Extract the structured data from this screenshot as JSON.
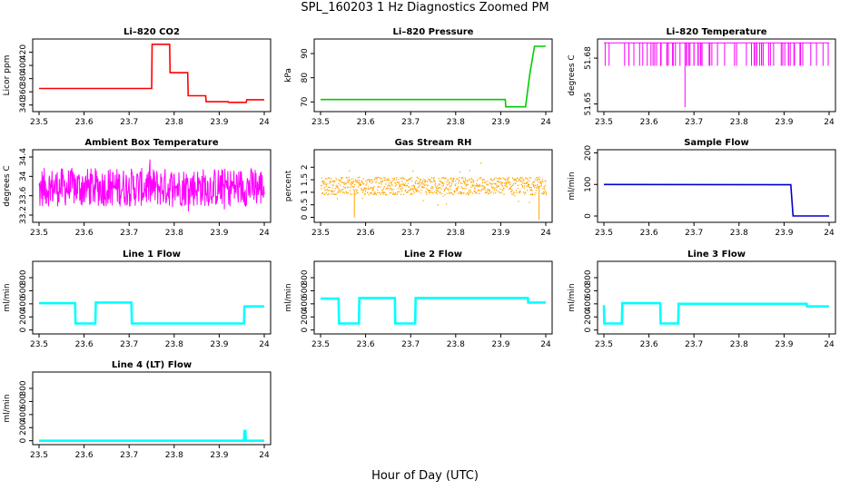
{
  "figure": {
    "title": "SPL_160203  1 Hz Diagnostics Zoomed PM",
    "xlabel": "Hour of Day (UTC)"
  },
  "chart_data": [
    {
      "type": "line",
      "title": "Li–820 CO2",
      "ylabel": "Licor ppm",
      "color": "#ff0000",
      "xlim": [
        23.5,
        24.0
      ],
      "xticks": [
        23.5,
        23.6,
        23.7,
        23.8,
        23.9,
        24.0
      ],
      "ylim": [
        330,
        440
      ],
      "yticks": [
        340,
        360,
        380,
        400,
        420
      ],
      "series": [
        {
          "x": [
            23.5,
            23.75,
            23.751,
            23.79,
            23.791,
            23.83,
            23.831,
            23.87,
            23.871,
            23.92,
            23.921,
            23.96,
            23.961,
            24.0
          ],
          "y": [
            365,
            365,
            432,
            432,
            389,
            389,
            354,
            354,
            345,
            345,
            344,
            344,
            348,
            348
          ]
        }
      ]
    },
    {
      "type": "line",
      "title": "Li–820 Pressure",
      "ylabel": "kPa",
      "color": "#00cc00",
      "xlim": [
        23.5,
        24.0
      ],
      "xticks": [
        23.5,
        23.6,
        23.7,
        23.8,
        23.9,
        24.0
      ],
      "ylim": [
        66,
        96
      ],
      "yticks": [
        70,
        80,
        90
      ],
      "series": [
        {
          "x": [
            23.5,
            23.91,
            23.911,
            23.955,
            23.965,
            23.975,
            24.0
          ],
          "y": [
            71,
            71,
            68,
            68,
            82,
            93,
            93
          ]
        }
      ]
    },
    {
      "type": "line",
      "title": "Li–820 Temperature",
      "ylabel": "degrees C",
      "color": "#ff00ff",
      "xlim": [
        23.5,
        24.0
      ],
      "xticks": [
        23.5,
        23.6,
        23.7,
        23.8,
        23.9,
        24.0
      ],
      "ylim": [
        51.645,
        51.6925
      ],
      "yticks": [
        51.65,
        51.68
      ],
      "series": [
        {
          "x": [
            23.5,
            24.0
          ],
          "y": [
            51.69,
            51.69
          ],
          "dips_to": 51.675,
          "spike_x": 23.68,
          "spike_to": 51.648
        }
      ]
    },
    {
      "type": "line",
      "title": "Ambient Box Temperature",
      "ylabel": "degrees C",
      "color": "#ff00ff",
      "xlim": [
        23.5,
        24.0
      ],
      "xticks": [
        23.5,
        23.6,
        23.7,
        23.8,
        23.9,
        24.0
      ],
      "ylim": [
        33.05,
        34.55
      ],
      "yticks": [
        33.2,
        33.6,
        34.0,
        34.4
      ],
      "series": [
        {
          "x": [
            23.5,
            24.0
          ],
          "y": [
            33.2,
            34.35
          ]
        }
      ]
    },
    {
      "type": "scatter",
      "title": "Gas Stream RH",
      "ylabel": "percent",
      "color": "#ffa500",
      "xlim": [
        23.5,
        24.0
      ],
      "xticks": [
        23.5,
        23.6,
        23.7,
        23.8,
        23.9,
        24.0
      ],
      "ylim": [
        -0.2,
        2.7
      ],
      "yticks": [
        0.0,
        0.5,
        1.0,
        1.5,
        2.0
      ],
      "series": [
        {
          "x": [
            23.5,
            24.0
          ],
          "y": [
            0.7,
            1.8
          ]
        }
      ]
    },
    {
      "type": "line",
      "title": "Sample Flow",
      "ylabel": "ml/min",
      "color": "#0000cc",
      "xlim": [
        23.5,
        24.0
      ],
      "xticks": [
        23.5,
        23.6,
        23.7,
        23.8,
        23.9,
        24.0
      ],
      "ylim": [
        -20,
        210
      ],
      "yticks": [
        0,
        100,
        200
      ],
      "series": [
        {
          "x": [
            23.5,
            23.915,
            23.92,
            24.0
          ],
          "y": [
            100,
            99,
            0,
            0
          ]
        }
      ]
    },
    {
      "type": "line",
      "title": "Line 1 Flow",
      "ylabel": "ml/min",
      "color": "#00ffff",
      "xlim": [
        23.5,
        24.0
      ],
      "xticks": [
        23.5,
        23.6,
        23.7,
        23.8,
        23.9,
        24.0
      ],
      "ylim": [
        -60,
        1050
      ],
      "yticks": [
        0,
        200,
        400,
        600,
        800
      ],
      "series": [
        {
          "x": [
            23.5,
            23.58,
            23.581,
            23.625,
            23.626,
            23.705,
            23.706,
            23.955,
            23.956,
            24.0
          ],
          "y": [
            410,
            410,
            100,
            100,
            420,
            420,
            100,
            100,
            360,
            360
          ]
        }
      ]
    },
    {
      "type": "line",
      "title": "Line 2 Flow",
      "ylabel": "ml/min",
      "color": "#00ffff",
      "xlim": [
        23.5,
        24.0
      ],
      "xticks": [
        23.5,
        23.6,
        23.7,
        23.8,
        23.9,
        24.0
      ],
      "ylim": [
        -60,
        1050
      ],
      "yticks": [
        0,
        200,
        400,
        600,
        800
      ],
      "series": [
        {
          "x": [
            23.5,
            23.54,
            23.541,
            23.585,
            23.586,
            23.665,
            23.666,
            23.71,
            23.711,
            23.96,
            23.961,
            24.0
          ],
          "y": [
            480,
            480,
            100,
            100,
            490,
            490,
            100,
            100,
            490,
            490,
            420,
            420
          ]
        }
      ]
    },
    {
      "type": "line",
      "title": "Line 3 Flow",
      "ylabel": "ml/min",
      "color": "#00ffff",
      "xlim": [
        23.5,
        24.0
      ],
      "xticks": [
        23.5,
        23.6,
        23.7,
        23.8,
        23.9,
        24.0
      ],
      "ylim": [
        -60,
        1050
      ],
      "yticks": [
        0,
        200,
        400,
        600,
        800
      ],
      "series": [
        {
          "x": [
            23.5,
            23.501,
            23.54,
            23.541,
            23.625,
            23.626,
            23.665,
            23.666,
            23.95,
            23.951,
            24.0
          ],
          "y": [
            380,
            100,
            100,
            410,
            410,
            100,
            100,
            400,
            400,
            360,
            360
          ]
        }
      ]
    },
    {
      "type": "line",
      "title": "Line 4 (LT) Flow",
      "ylabel": "ml/min",
      "color": "#00ffff",
      "xlim": [
        23.5,
        24.0
      ],
      "xticks": [
        23.5,
        23.6,
        23.7,
        23.8,
        23.9,
        24.0
      ],
      "ylim": [
        -60,
        1050
      ],
      "yticks": [
        0,
        200,
        400,
        600,
        800
      ],
      "series": [
        {
          "x": [
            23.5,
            23.955,
            23.956,
            23.958,
            23.959,
            24.0
          ],
          "y": [
            0,
            0,
            150,
            150,
            0,
            0
          ]
        }
      ]
    }
  ]
}
